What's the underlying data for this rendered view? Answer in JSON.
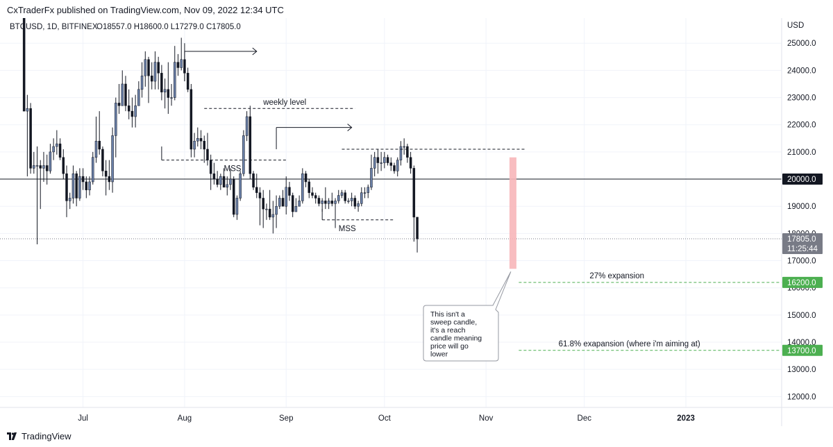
{
  "header": {
    "published_line": "CxTraderFx published on TradingView.com, Nov 09, 2022 12:34 UTC"
  },
  "footer": {
    "brand": "TradingView"
  },
  "chart_data": {
    "type": "candlestick",
    "symbol": "BTCUSD, 1D, BITFINEX",
    "ohlc_label": {
      "open": "O18557.0",
      "high": "H18600.0",
      "low": "L17279.0",
      "close": "C17805.0"
    },
    "currency_label": "USD",
    "price_scale": "linear",
    "ylim": [
      11600,
      25900
    ],
    "y_ticks": [
      "25000.0",
      "24000.0",
      "23000.0",
      "22000.0",
      "21000.0",
      "20000.0",
      "19000.0",
      "18000.0",
      "17000.0",
      "16000.0",
      "15000.0",
      "14000.0",
      "13000.0",
      "12000.0"
    ],
    "x_ticks": [
      {
        "label": "Jul",
        "date": "2022-07-01"
      },
      {
        "label": "Aug",
        "date": "2022-08-01"
      },
      {
        "label": "Sep",
        "date": "2022-09-01"
      },
      {
        "label": "Oct",
        "date": "2022-10-01"
      },
      {
        "label": "Nov",
        "date": "2022-11-01"
      },
      {
        "label": "Dec",
        "date": "2022-12-01"
      },
      {
        "label": "2023",
        "date": "2023-01-01"
      }
    ],
    "grid": true,
    "candles": {
      "start_date": "2022-06-13",
      "ohlc": [
        [
          26500,
          26800,
          22600,
          22500
        ],
        [
          22500,
          23100,
          20100,
          22600
        ],
        [
          22600,
          22800,
          20200,
          20400
        ],
        [
          20400,
          21000,
          20200,
          20500
        ],
        [
          20500,
          21200,
          17600,
          20500
        ],
        [
          20500,
          20700,
          18900,
          20400
        ],
        [
          20400,
          21000,
          19900,
          20500
        ],
        [
          20500,
          20900,
          19800,
          20300
        ],
        [
          20300,
          21300,
          20200,
          21000
        ],
        [
          21000,
          21500,
          20700,
          21200
        ],
        [
          21200,
          21800,
          20900,
          21300
        ],
        [
          21300,
          21500,
          20700,
          20800
        ],
        [
          20800,
          21100,
          20000,
          20200
        ],
        [
          20200,
          20500,
          18600,
          19200
        ],
        [
          19200,
          19500,
          18900,
          19300
        ],
        [
          19300,
          20500,
          19100,
          20200
        ],
        [
          20200,
          20300,
          19000,
          19300
        ],
        [
          19300,
          20400,
          19200,
          20100
        ],
        [
          20100,
          20400,
          19600,
          19900
        ],
        [
          19900,
          20100,
          19300,
          19600
        ],
        [
          19600,
          20100,
          19400,
          19900
        ],
        [
          19900,
          21000,
          19800,
          20800
        ],
        [
          20800,
          22300,
          20600,
          21400
        ],
        [
          21400,
          22500,
          20900,
          21100
        ],
        [
          21100,
          21200,
          20100,
          20300
        ],
        [
          20300,
          20700,
          19400,
          20100
        ],
        [
          20100,
          20700,
          19600,
          19900
        ],
        [
          19900,
          21900,
          19500,
          21600
        ],
        [
          21600,
          23000,
          20800,
          22800
        ],
        [
          22800,
          23500,
          22400,
          22700
        ],
        [
          22700,
          24000,
          22700,
          23500
        ],
        [
          23500,
          23800,
          22500,
          22700
        ],
        [
          22700,
          23300,
          22200,
          22500
        ],
        [
          22500,
          23000,
          21900,
          22300
        ],
        [
          22300,
          23100,
          21900,
          22700
        ],
        [
          22700,
          23600,
          22700,
          23300
        ],
        [
          23300,
          24300,
          23000,
          23800
        ],
        [
          23800,
          24700,
          23400,
          24400
        ],
        [
          24400,
          24500,
          22800,
          23800
        ],
        [
          23800,
          24300,
          23300,
          23600
        ],
        [
          23600,
          24700,
          23300,
          24300
        ],
        [
          24300,
          24500,
          23300,
          23900
        ],
        [
          23900,
          24200,
          22900,
          23200
        ],
        [
          23200,
          23700,
          22600,
          23300
        ],
        [
          23300,
          24300,
          22400,
          23000
        ],
        [
          23000,
          23500,
          22700,
          23000
        ],
        [
          23000,
          24900,
          22900,
          24300
        ],
        [
          24300,
          24600,
          23800,
          24100
        ],
        [
          24100,
          25200,
          24000,
          24400
        ],
        [
          24400,
          25000,
          23600,
          23900
        ],
        [
          23900,
          24100,
          23200,
          23300
        ],
        [
          23300,
          23500,
          20800,
          21100
        ],
        [
          21100,
          21700,
          20800,
          21400
        ],
        [
          21400,
          21900,
          21200,
          21500
        ],
        [
          21500,
          21800,
          21100,
          21400
        ],
        [
          21400,
          21600,
          20600,
          21100
        ],
        [
          21100,
          21700,
          20500,
          20700
        ],
        [
          20700,
          20900,
          19600,
          20200
        ],
        [
          20200,
          20600,
          19800,
          20000
        ],
        [
          20000,
          20300,
          19700,
          19800
        ],
        [
          19800,
          20200,
          19600,
          20100
        ],
        [
          20100,
          20400,
          19700,
          19700
        ],
        [
          19700,
          20100,
          19400,
          19800
        ],
        [
          19800,
          20400,
          19600,
          20000
        ],
        [
          20000,
          20100,
          18600,
          18700
        ],
        [
          18700,
          19400,
          18500,
          19300
        ],
        [
          19300,
          20300,
          19200,
          20200
        ],
        [
          20200,
          21800,
          20100,
          21600
        ],
        [
          21600,
          22500,
          21400,
          22300
        ],
        [
          22300,
          22700,
          20000,
          20200
        ],
        [
          20200,
          20300,
          19600,
          19700
        ],
        [
          19700,
          20200,
          19300,
          19500
        ],
        [
          19500,
          19700,
          18300,
          19300
        ],
        [
          19300,
          19600,
          18200,
          18900
        ],
        [
          18900,
          19100,
          18500,
          18900
        ],
        [
          18900,
          19600,
          18500,
          18600
        ],
        [
          18600,
          19200,
          18000,
          18700
        ],
        [
          18700,
          19400,
          18200,
          19000
        ],
        [
          19000,
          19400,
          18900,
          19300
        ],
        [
          19300,
          19600,
          19000,
          19000
        ],
        [
          19000,
          20100,
          18700,
          19700
        ],
        [
          19700,
          19900,
          19200,
          19400
        ],
        [
          19400,
          19500,
          18600,
          18800
        ],
        [
          18800,
          19300,
          18800,
          19000
        ],
        [
          19000,
          19400,
          19000,
          19200
        ],
        [
          19200,
          20400,
          19100,
          20200
        ],
        [
          20200,
          20300,
          19700,
          19900
        ],
        [
          19900,
          20000,
          19300,
          19500
        ],
        [
          19500,
          19700,
          19300,
          19400
        ],
        [
          19400,
          19500,
          19100,
          19300
        ],
        [
          19300,
          19400,
          19000,
          19100
        ],
        [
          19100,
          19300,
          18800,
          19200
        ],
        [
          19200,
          19700,
          18900,
          19100
        ],
        [
          19100,
          19300,
          18900,
          19200
        ],
        [
          19200,
          19500,
          19000,
          19100
        ],
        [
          19100,
          19300,
          18200,
          19200
        ],
        [
          19200,
          19600,
          19100,
          19400
        ],
        [
          19400,
          19600,
          19300,
          19500
        ],
        [
          19500,
          19600,
          19100,
          19200
        ],
        [
          19200,
          19300,
          19100,
          19200
        ],
        [
          19200,
          19500,
          19000,
          19300
        ],
        [
          19300,
          19400,
          18900,
          19000
        ],
        [
          19000,
          19200,
          18800,
          19100
        ],
        [
          19100,
          19700,
          19000,
          19500
        ],
        [
          19500,
          19700,
          19300,
          19500
        ],
        [
          19500,
          19800,
          19300,
          19700
        ],
        [
          19700,
          20900,
          19600,
          20400
        ],
        [
          20400,
          21000,
          20100,
          20800
        ],
        [
          20800,
          21100,
          20200,
          20600
        ],
        [
          20600,
          21000,
          20300,
          20600
        ],
        [
          20600,
          21000,
          20400,
          20800
        ],
        [
          20800,
          20900,
          20500,
          20600
        ],
        [
          20600,
          20800,
          20300,
          20500
        ],
        [
          20500,
          20600,
          20200,
          20300
        ],
        [
          20300,
          20800,
          20100,
          20700
        ],
        [
          20700,
          21400,
          20500,
          21200
        ],
        [
          21200,
          21500,
          20900,
          21200
        ],
        [
          21200,
          21300,
          20600,
          20800
        ],
        [
          20800,
          21000,
          20200,
          20400
        ],
        [
          20400,
          20500,
          17700,
          18600
        ],
        [
          18600,
          18600,
          17300,
          17800
        ]
      ]
    },
    "levels": [
      {
        "name": "round-number",
        "price": 20000,
        "badge": "20000.0",
        "color": "#131722"
      },
      {
        "name": "last-price",
        "price": 17805,
        "badge": "17805.0",
        "countdown": "11:25:44",
        "color": "#787b86"
      },
      {
        "name": "27-percent-expansion",
        "price": 16200,
        "badge": "16200.0",
        "label": "27% expansion",
        "color": "#4caf50"
      },
      {
        "name": "61-8-expansion",
        "price": 13700,
        "badge": "13700.0",
        "label": "61.8% exapansion (where i'm aiming at)",
        "color": "#4caf50"
      }
    ],
    "annotations": {
      "weekly_level": "weekly level",
      "mss_left": "MSS",
      "mss_right": "MSS",
      "callout": [
        "This isn't a",
        "sweep candle,",
        "it's a reach",
        "candle meaning",
        "price will go",
        "lower"
      ]
    },
    "colors": {
      "up": "#6a7fa6",
      "down": "#131722",
      "highlight": "#f7b6b9",
      "expansion": "#4caf50"
    }
  }
}
